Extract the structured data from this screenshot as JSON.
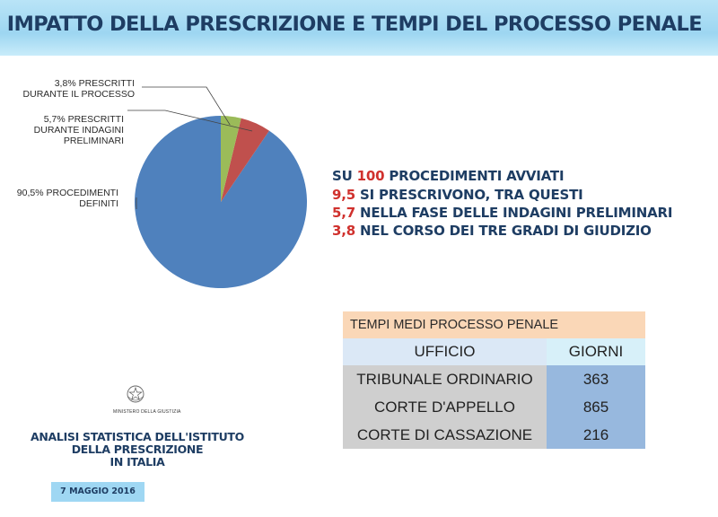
{
  "header": {
    "title": "IMPATTO DELLA PRESCRIZIONE E TEMPI DEL PROCESSO PENALE"
  },
  "chart_data": {
    "type": "pie",
    "slices": [
      {
        "label": "90,5% PROCEDIMENTI\nDEFINITI",
        "value": 90.5,
        "color": "#4f81bd"
      },
      {
        "label": "5,7% PRESCRITTI\nDURANTE INDAGINI\nPRELIMINARI",
        "value": 5.7,
        "color": "#c0504d"
      },
      {
        "label": "3,8% PRESCRITTI\nDURANTE IL PROCESSO",
        "value": 3.8,
        "color": "#9bbb59"
      }
    ],
    "start_angle": "12 o'clock",
    "direction": "counterclockwise"
  },
  "summary": {
    "line1_prefix": "SU ",
    "line1_num": "100",
    "line1_suffix": " PROCEDIMENTI AVVIATI",
    "lines": [
      {
        "num": "9,5",
        "text": " SI PRESCRIVONO, TRA QUESTI"
      },
      {
        "num": "5,7",
        "text": " NELLA FASE DELLE INDAGINI PRELIMINARI"
      },
      {
        "num": "3,8",
        "text": " NEL CORSO DEI TRE GRADI DI GIUDIZIO"
      }
    ]
  },
  "table": {
    "title": "TEMPI MEDI PROCESSO PENALE",
    "headers": [
      "UFFICIO",
      "GIORNI"
    ],
    "rows": [
      [
        "TRIBUNALE ORDINARIO",
        "363"
      ],
      [
        "CORTE D'APPELLO",
        "865"
      ],
      [
        "CORTE DI CASSAZIONE",
        "216"
      ]
    ]
  },
  "footer": {
    "ministry": "MINISTERO DELLA GIUSTIZIA",
    "report_title": "ANALISI STATISTICA DELL'ISTITUTO\nDELLA PRESCRIZIONE\nIN ITALIA",
    "date": "7 MAGGIO 2016"
  },
  "icons": {
    "emblem": "italian-republic-emblem-icon"
  }
}
